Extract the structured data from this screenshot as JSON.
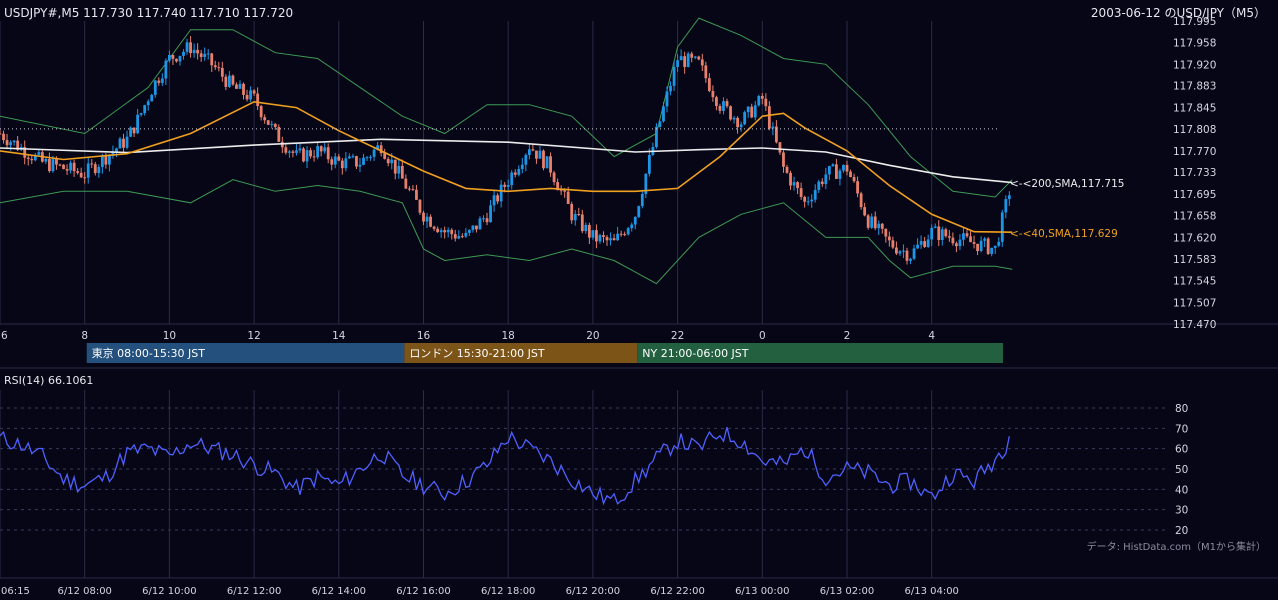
{
  "header": {
    "ohlc_label": "USDJPY#,M5 117.730 117.740 117.710 117.720",
    "chart_title": "2003-06-12 のUSD/JPY（M5）"
  },
  "colors": {
    "background": "#060617",
    "grid": "#2a2c45",
    "up_candle": "#1e96e6",
    "down_candle": "#e8806c",
    "sma200": "#ececec",
    "sma40": "#f0a020",
    "bollinger": "#3f9a54",
    "rsi_line": "#5060ff",
    "tokyo": "#23507d",
    "london": "#7d5418",
    "ny": "#236040"
  },
  "chart_data": [
    {
      "type": "candlestick",
      "symbol": "USDJPY#",
      "timeframe": "M5",
      "ylim": [
        117.47,
        117.995
      ],
      "y_ticks": [
        "117.995",
        "117.958",
        "117.920",
        "117.883",
        "117.845",
        "117.808",
        "117.770",
        "117.733",
        "117.695",
        "117.658",
        "117.620",
        "117.583",
        "117.545",
        "117.507",
        "117.470"
      ],
      "x_ticks": [
        "6",
        "8",
        "10",
        "12",
        "14",
        "16",
        "18",
        "20",
        "22",
        "0",
        "2",
        "4"
      ],
      "last_ohlc": {
        "open": 117.73,
        "high": 117.74,
        "low": 117.71,
        "close": 117.72
      },
      "reference_level": 117.808,
      "close_path_hours": [
        6.0,
        7.0,
        7.5,
        8.0,
        8.5,
        9.0,
        9.3,
        9.6,
        10.0,
        10.5,
        11.0,
        11.5,
        12.0,
        12.5,
        13.0,
        13.5,
        14.0,
        14.5,
        15.0,
        15.5,
        16.0,
        16.5,
        17.0,
        17.5,
        18.0,
        18.5,
        19.0,
        19.5,
        20.0,
        20.5,
        21.0,
        21.5,
        22.0,
        22.5,
        23.0,
        23.5,
        24.0,
        24.5,
        25.0,
        25.5,
        26.0,
        26.5,
        27.0,
        27.5,
        28.0,
        28.5,
        29.5,
        29.9
      ],
      "close_path_values": [
        117.8,
        117.75,
        117.74,
        117.73,
        117.76,
        117.79,
        117.83,
        117.88,
        117.93,
        117.95,
        117.92,
        117.88,
        117.86,
        117.8,
        117.76,
        117.77,
        117.75,
        117.75,
        117.78,
        117.72,
        117.66,
        117.63,
        117.62,
        117.66,
        117.72,
        117.78,
        117.74,
        117.66,
        117.62,
        117.61,
        117.66,
        117.8,
        117.93,
        117.92,
        117.85,
        117.82,
        117.86,
        117.74,
        117.68,
        117.73,
        117.74,
        117.65,
        117.61,
        117.59,
        117.63,
        117.62,
        117.6,
        117.72
      ],
      "indicators": [
        {
          "name": "200,SMA",
          "label": "<-<200,SMA,117.715",
          "last_value": 117.715,
          "hours": [
            6.0,
            9.0,
            12.0,
            15.0,
            18.0,
            21.0,
            22.5,
            24.0,
            25.5,
            27.0,
            28.5,
            29.9
          ],
          "values": [
            117.775,
            117.767,
            117.78,
            117.79,
            117.785,
            117.768,
            117.772,
            117.775,
            117.768,
            117.745,
            117.725,
            117.715
          ]
        },
        {
          "name": "40,SMA",
          "label": "<-<40,SMA,117.629",
          "last_value": 117.629,
          "hours": [
            6.0,
            7.5,
            9.0,
            10.5,
            12.0,
            13.0,
            14.0,
            15.0,
            16.0,
            17.0,
            18.0,
            19.0,
            20.0,
            21.0,
            22.0,
            23.0,
            24.0,
            24.5,
            25.0,
            26.0,
            27.0,
            28.0,
            29.0,
            29.9
          ],
          "values": [
            117.77,
            117.755,
            117.765,
            117.8,
            117.855,
            117.845,
            117.805,
            117.77,
            117.735,
            117.705,
            117.7,
            117.705,
            117.7,
            117.7,
            117.705,
            117.76,
            117.83,
            117.835,
            117.81,
            117.77,
            117.71,
            117.66,
            117.63,
            117.629
          ]
        },
        {
          "name": "Bollinger upper",
          "hours": [
            6.0,
            8.0,
            9.5,
            10.5,
            11.5,
            12.5,
            13.5,
            14.5,
            15.5,
            16.5,
            17.5,
            18.5,
            19.5,
            20.5,
            21.5,
            22.0,
            22.5,
            23.5,
            24.5,
            25.5,
            26.5,
            27.5,
            28.5,
            29.5,
            29.9
          ],
          "values": [
            117.83,
            117.8,
            117.88,
            117.98,
            117.98,
            117.94,
            117.93,
            117.88,
            117.83,
            117.8,
            117.85,
            117.85,
            117.83,
            117.76,
            117.8,
            117.95,
            118.0,
            117.97,
            117.93,
            117.92,
            117.85,
            117.76,
            117.7,
            117.69,
            117.72
          ]
        },
        {
          "name": "Bollinger lower",
          "hours": [
            6.0,
            7.5,
            9.0,
            10.5,
            11.5,
            12.5,
            13.5,
            14.5,
            15.5,
            16.0,
            16.5,
            17.5,
            18.5,
            19.5,
            20.5,
            21.5,
            22.5,
            23.5,
            24.5,
            25.5,
            26.5,
            27.0,
            27.5,
            28.5,
            29.5,
            29.9
          ],
          "values": [
            117.68,
            117.7,
            117.7,
            117.68,
            117.72,
            117.7,
            117.71,
            117.7,
            117.68,
            117.6,
            117.58,
            117.59,
            117.58,
            117.6,
            117.58,
            117.54,
            117.62,
            117.66,
            117.68,
            117.62,
            117.62,
            117.58,
            117.55,
            117.57,
            117.57,
            117.565
          ]
        }
      ],
      "sessions": [
        {
          "label": "東京 08:00-15:30 JST",
          "start_hour": 8.0,
          "end_hour": 15.5,
          "color": "#23507d"
        },
        {
          "label": "ロンドン 15:30-21:00 JST",
          "start_hour": 15.5,
          "end_hour": 21.0,
          "color": "#7d5418"
        },
        {
          "label": "NY 21:00-06:00 JST",
          "start_hour": 21.0,
          "end_hour": 30.0,
          "color": "#236040"
        }
      ]
    },
    {
      "type": "line",
      "title": "RSI(14) 66.1061",
      "ylim": [
        20,
        80
      ],
      "y_ticks": [
        "80",
        "70",
        "60",
        "50",
        "40",
        "30",
        "20"
      ],
      "hours": [
        6.0,
        6.5,
        7.0,
        7.5,
        8.0,
        8.5,
        9.0,
        9.5,
        10.0,
        10.5,
        11.0,
        11.5,
        12.0,
        12.5,
        13.0,
        13.5,
        14.0,
        14.5,
        15.0,
        15.5,
        16.0,
        16.5,
        17.0,
        17.5,
        18.0,
        18.5,
        19.0,
        19.5,
        20.0,
        20.5,
        21.0,
        21.5,
        22.0,
        22.5,
        23.0,
        23.5,
        24.0,
        24.5,
        25.0,
        25.5,
        26.0,
        26.5,
        27.0,
        27.5,
        28.0,
        28.5,
        29.0,
        29.5,
        29.9
      ],
      "values": [
        65,
        62,
        56,
        45,
        42,
        46,
        58,
        60,
        56,
        63,
        60,
        57,
        52,
        48,
        40,
        46,
        42,
        50,
        58,
        47,
        42,
        38,
        44,
        52,
        66,
        60,
        54,
        45,
        38,
        34,
        44,
        55,
        64,
        60,
        68,
        64,
        54,
        52,
        60,
        46,
        50,
        48,
        42,
        44,
        36,
        48,
        44,
        55,
        66
      ],
      "last_value": 66.1061
    }
  ],
  "x_time_labels": [
    "06:15",
    "6/12 08:00",
    "6/12 10:00",
    "6/12 12:00",
    "6/12 14:00",
    "6/12 16:00",
    "6/12 18:00",
    "6/12 20:00",
    "6/12 22:00",
    "6/13 00:00",
    "6/13 02:00",
    "6/13 04:00"
  ],
  "footer": {
    "data_source": "データ: HistData.com（M1から集計）"
  }
}
